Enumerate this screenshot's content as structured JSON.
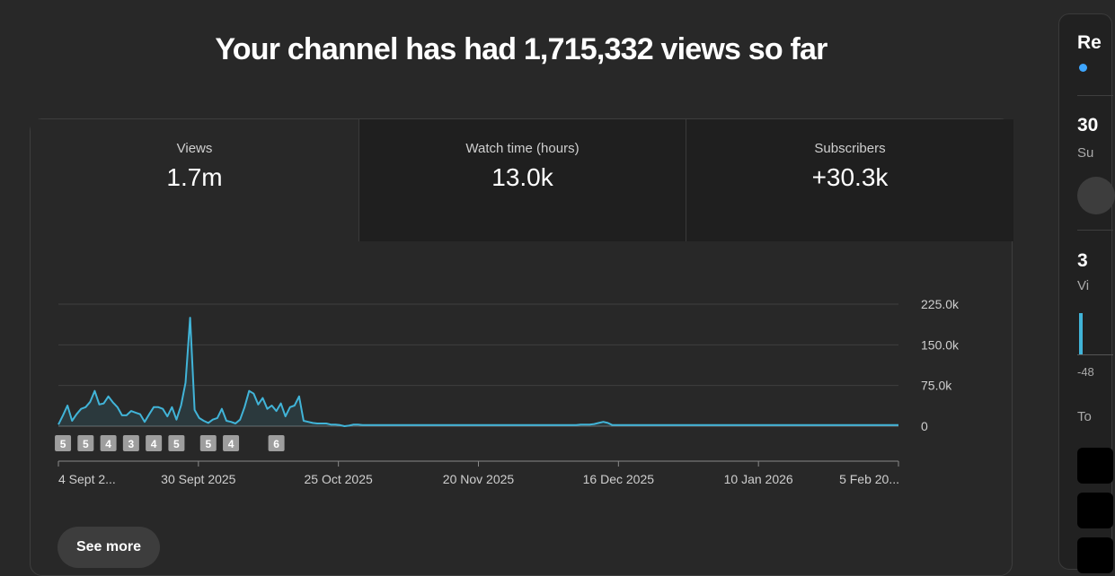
{
  "headline": {
    "prefix": "Your channel has had ",
    "views": "1,715,332",
    "suffix": " views so far"
  },
  "tabs": [
    {
      "label": "Views",
      "value": "1.7m"
    },
    {
      "label": "Watch time (hours)",
      "value": "13.0k"
    },
    {
      "label": "Subscribers",
      "value": "+30.3k"
    }
  ],
  "chart_data": {
    "type": "area",
    "series": [
      {
        "color": "#41b4d8",
        "values": [
          3,
          20,
          38,
          10,
          22,
          32,
          35,
          45,
          65,
          40,
          42,
          55,
          44,
          35,
          20,
          20,
          28,
          25,
          22,
          8,
          22,
          35,
          35,
          32,
          18,
          35,
          12,
          38,
          80,
          200,
          30,
          15,
          10,
          6,
          12,
          15,
          32,
          10,
          8,
          5,
          12,
          35,
          65,
          60,
          40,
          52,
          32,
          38,
          28,
          42,
          18,
          35,
          38,
          55,
          10,
          8,
          6,
          5,
          5,
          5,
          3,
          3,
          2,
          0,
          1,
          3,
          3,
          2,
          2,
          2,
          2,
          2,
          2,
          2,
          2,
          2,
          2,
          2,
          2,
          2,
          2,
          2,
          2,
          2,
          2,
          2,
          2,
          2,
          2,
          2,
          2,
          2,
          2,
          2,
          2,
          2,
          2,
          2,
          2,
          2,
          2,
          2,
          2,
          2,
          2,
          2,
          2,
          2,
          2,
          2,
          2,
          2,
          2,
          2,
          2,
          3,
          3,
          3,
          4,
          6,
          8,
          6,
          2,
          2,
          2,
          2,
          2,
          2,
          2,
          2,
          2,
          2,
          2,
          2,
          2,
          2,
          2,
          2,
          2,
          2,
          2,
          2,
          2,
          2,
          2,
          2,
          2,
          2,
          2,
          2,
          2,
          2,
          2,
          2,
          2,
          2,
          2,
          2,
          2,
          2,
          2,
          2,
          2,
          2,
          2,
          2,
          2,
          2,
          2,
          2,
          2,
          2,
          2,
          2,
          2,
          2,
          2,
          2,
          2,
          2,
          2,
          2,
          2,
          2,
          2,
          2
        ]
      }
    ],
    "y_ticks": [
      "225.0k",
      "150.0k",
      "75.0k",
      "0"
    ],
    "ylim": [
      0,
      225
    ],
    "x_ticks": [
      "4 Sept 2...",
      "30 Sept 2025",
      "25 Oct 2025",
      "20 Nov 2025",
      "16 Dec 2025",
      "10 Jan 2026",
      "5 Feb 20..."
    ],
    "upload_markers": [
      {
        "day": 1,
        "label": "5"
      },
      {
        "day": 6,
        "label": "5"
      },
      {
        "day": 11,
        "label": "4"
      },
      {
        "day": 16,
        "label": "3"
      },
      {
        "day": 21,
        "label": "4"
      },
      {
        "day": 26,
        "label": "5"
      },
      {
        "day": 33,
        "label": "5"
      },
      {
        "day": 38,
        "label": "4"
      },
      {
        "day": 48,
        "label": "6"
      }
    ],
    "grid": true
  },
  "see_more": "See more",
  "sidebar": {
    "title": "Re",
    "stat1": "30",
    "stat1_label": "Su",
    "stat2": "3",
    "stat2_label": "Vi",
    "axis_min": "-48",
    "section": "To"
  }
}
